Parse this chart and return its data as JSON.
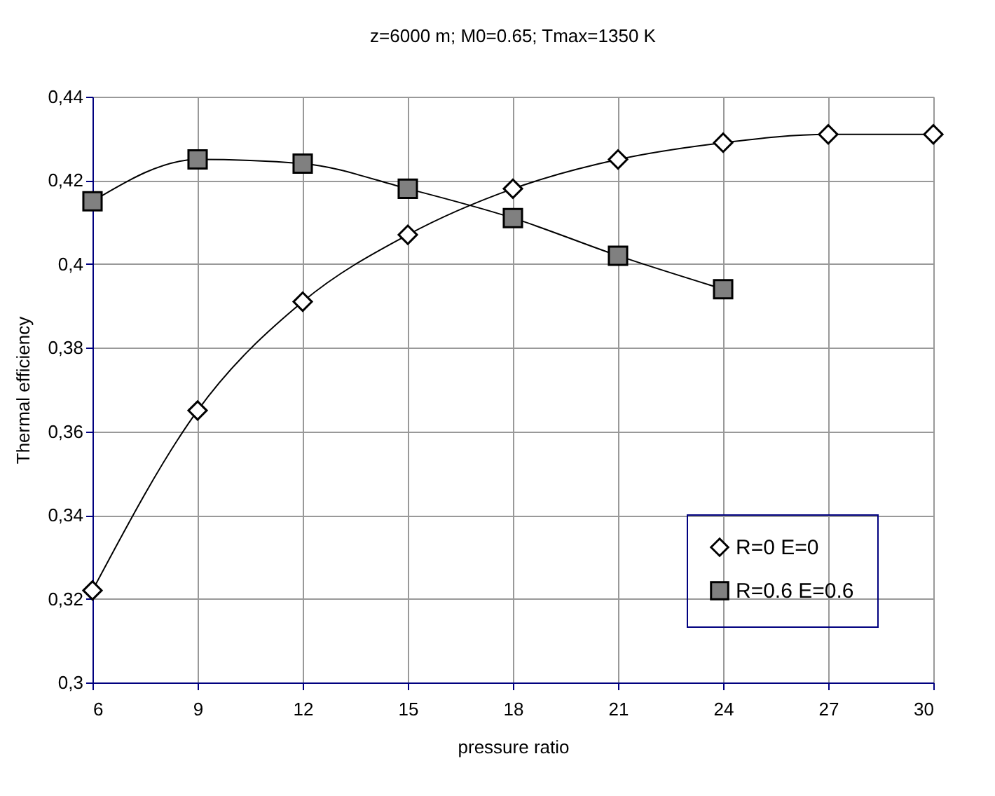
{
  "chart_data": {
    "type": "line",
    "title": "z=6000 m; M0=0.65; Tmax=1350 K",
    "xlabel": "pressure ratio",
    "ylabel": "Thermal efficiency",
    "x": [
      6,
      9,
      12,
      15,
      18,
      21,
      24,
      27,
      30
    ],
    "series": [
      {
        "name": "R=0 E=0",
        "color": "#ffffff",
        "marker": "diamond",
        "values": [
          0.322,
          0.365,
          0.391,
          0.407,
          0.418,
          0.425,
          0.429,
          0.431,
          0.431
        ]
      },
      {
        "name": "R=0.6 E=0.6",
        "color": "#808080",
        "marker": "square",
        "values": [
          0.415,
          0.425,
          0.424,
          0.418,
          0.411,
          0.402,
          0.394,
          null,
          null
        ]
      }
    ],
    "xlim": [
      6,
      30
    ],
    "xticks": [
      6,
      9,
      12,
      15,
      18,
      21,
      24,
      27,
      30
    ],
    "ylim": [
      0.3,
      0.44
    ],
    "yticks": [
      {
        "value": 0.3,
        "label": "0,3"
      },
      {
        "value": 0.32,
        "label": "0,32"
      },
      {
        "value": 0.34,
        "label": "0,34"
      },
      {
        "value": 0.36,
        "label": "0,36"
      },
      {
        "value": 0.38,
        "label": "0,38"
      },
      {
        "value": 0.4,
        "label": "0,4"
      },
      {
        "value": 0.42,
        "label": "0,42"
      },
      {
        "value": 0.44,
        "label": "0,44"
      }
    ],
    "grid": true,
    "legend": "bottom right",
    "line_style": "solid"
  }
}
